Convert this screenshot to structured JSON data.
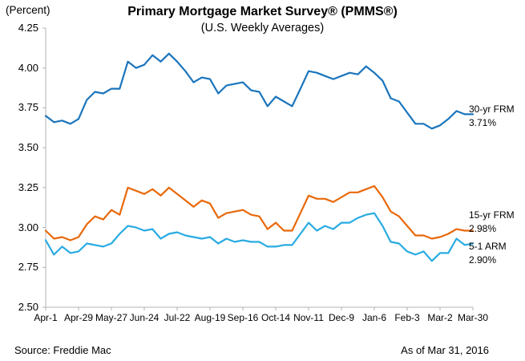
{
  "chart_data": {
    "type": "line",
    "title": "Primary Mortgage Market Survey® (PMMS®)",
    "subtitle": "(U.S. Weekly Averages)",
    "ylabel": "(Percent)",
    "ylim": [
      2.5,
      4.25
    ],
    "grid": false,
    "y_tick_labels": [
      "4.25",
      "4.00",
      "3.75",
      "3.50",
      "3.25",
      "3.00",
      "2.75",
      "2.50"
    ],
    "x_tick_labels": [
      "Apr-1",
      "Apr-29",
      "May-27",
      "Jun-24",
      "Jul-22",
      "Aug-19",
      "Sep-16",
      "Oct-14",
      "Nov-11",
      "Dec-9",
      "Jan-6",
      "Feb-3",
      "Mar-2",
      "Mar-30"
    ],
    "x_tick_step": 4,
    "legend_position": "right-of-line-ends",
    "series": [
      {
        "name": "30-yr FRM",
        "end_value_label": "3.71%",
        "color": "#1B75BC",
        "values": [
          3.7,
          3.66,
          3.67,
          3.65,
          3.68,
          3.8,
          3.85,
          3.84,
          3.87,
          3.87,
          4.04,
          4.0,
          4.02,
          4.08,
          4.04,
          4.09,
          4.04,
          3.98,
          3.91,
          3.94,
          3.93,
          3.84,
          3.89,
          3.9,
          3.91,
          3.86,
          3.85,
          3.76,
          3.82,
          3.79,
          3.76,
          3.87,
          3.98,
          3.97,
          3.95,
          3.93,
          3.95,
          3.97,
          3.96,
          4.01,
          3.97,
          3.92,
          3.81,
          3.79,
          3.72,
          3.65,
          3.65,
          3.62,
          3.64,
          3.68,
          3.73,
          3.71,
          3.71
        ]
      },
      {
        "name": "15-yr FRM",
        "end_value_label": "2.98%",
        "color": "#E8690B",
        "values": [
          2.98,
          2.93,
          2.94,
          2.92,
          2.94,
          3.02,
          3.07,
          3.05,
          3.11,
          3.08,
          3.25,
          3.23,
          3.21,
          3.24,
          3.2,
          3.25,
          3.21,
          3.17,
          3.13,
          3.17,
          3.15,
          3.06,
          3.09,
          3.1,
          3.11,
          3.08,
          3.07,
          2.99,
          3.03,
          2.98,
          2.98,
          3.09,
          3.2,
          3.18,
          3.18,
          3.16,
          3.19,
          3.22,
          3.22,
          3.24,
          3.26,
          3.19,
          3.1,
          3.07,
          3.01,
          2.95,
          2.95,
          2.93,
          2.94,
          2.96,
          2.99,
          2.98,
          2.98
        ]
      },
      {
        "name": "5-1 ARM",
        "end_value_label": "2.90%",
        "color": "#29ABE2",
        "values": [
          2.92,
          2.83,
          2.88,
          2.84,
          2.85,
          2.9,
          2.89,
          2.88,
          2.9,
          2.96,
          3.01,
          3.0,
          2.98,
          2.99,
          2.93,
          2.96,
          2.97,
          2.95,
          2.94,
          2.93,
          2.94,
          2.9,
          2.93,
          2.91,
          2.92,
          2.91,
          2.91,
          2.88,
          2.88,
          2.89,
          2.89,
          2.96,
          3.03,
          2.98,
          3.01,
          2.99,
          3.03,
          3.03,
          3.06,
          3.08,
          3.09,
          3.01,
          2.91,
          2.9,
          2.85,
          2.83,
          2.85,
          2.79,
          2.84,
          2.84,
          2.93,
          2.89,
          2.9
        ]
      }
    ]
  },
  "footer": {
    "source": "Source: Freddie Mac",
    "as_of": "As of Mar 31, 2016"
  },
  "colors": {
    "axis": "#B3B3B3",
    "text": "#000000",
    "background": "#FFFFFF"
  }
}
